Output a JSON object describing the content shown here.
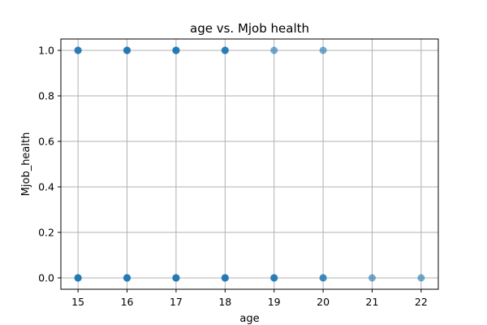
{
  "chart_data": {
    "type": "scatter",
    "title": "age vs. Mjob health",
    "xlabel": "age",
    "ylabel": "Mjob_health",
    "xlim": [
      14.65,
      22.35
    ],
    "ylim": [
      -0.05,
      1.05
    ],
    "xticks": [
      15,
      16,
      17,
      18,
      19,
      20,
      21,
      22
    ],
    "yticks": [
      0.0,
      0.2,
      0.4,
      0.6,
      0.8,
      1.0
    ],
    "ytick_labels": [
      "0.0",
      "0.2",
      "0.4",
      "0.6",
      "0.8",
      "1.0"
    ],
    "grid": true,
    "marker_color": "#1f77b4",
    "marker_alpha": 0.6,
    "points": [
      {
        "x": 15,
        "y": 1
      },
      {
        "x": 15,
        "y": 1
      },
      {
        "x": 15,
        "y": 1
      },
      {
        "x": 16,
        "y": 1
      },
      {
        "x": 16,
        "y": 1
      },
      {
        "x": 16,
        "y": 1
      },
      {
        "x": 16,
        "y": 1
      },
      {
        "x": 17,
        "y": 1
      },
      {
        "x": 17,
        "y": 1
      },
      {
        "x": 17,
        "y": 1
      },
      {
        "x": 17,
        "y": 1
      },
      {
        "x": 18,
        "y": 1
      },
      {
        "x": 18,
        "y": 1
      },
      {
        "x": 18,
        "y": 1
      },
      {
        "x": 19,
        "y": 1
      },
      {
        "x": 20,
        "y": 1
      },
      {
        "x": 15,
        "y": 0
      },
      {
        "x": 15,
        "y": 0
      },
      {
        "x": 15,
        "y": 0
      },
      {
        "x": 15,
        "y": 0
      },
      {
        "x": 16,
        "y": 0
      },
      {
        "x": 16,
        "y": 0
      },
      {
        "x": 16,
        "y": 0
      },
      {
        "x": 16,
        "y": 0
      },
      {
        "x": 17,
        "y": 0
      },
      {
        "x": 17,
        "y": 0
      },
      {
        "x": 17,
        "y": 0
      },
      {
        "x": 17,
        "y": 0
      },
      {
        "x": 18,
        "y": 0
      },
      {
        "x": 18,
        "y": 0
      },
      {
        "x": 18,
        "y": 0
      },
      {
        "x": 18,
        "y": 0
      },
      {
        "x": 19,
        "y": 0
      },
      {
        "x": 19,
        "y": 0
      },
      {
        "x": 19,
        "y": 0
      },
      {
        "x": 20,
        "y": 0
      },
      {
        "x": 20,
        "y": 0
      },
      {
        "x": 21,
        "y": 0
      },
      {
        "x": 22,
        "y": 0
      }
    ]
  }
}
